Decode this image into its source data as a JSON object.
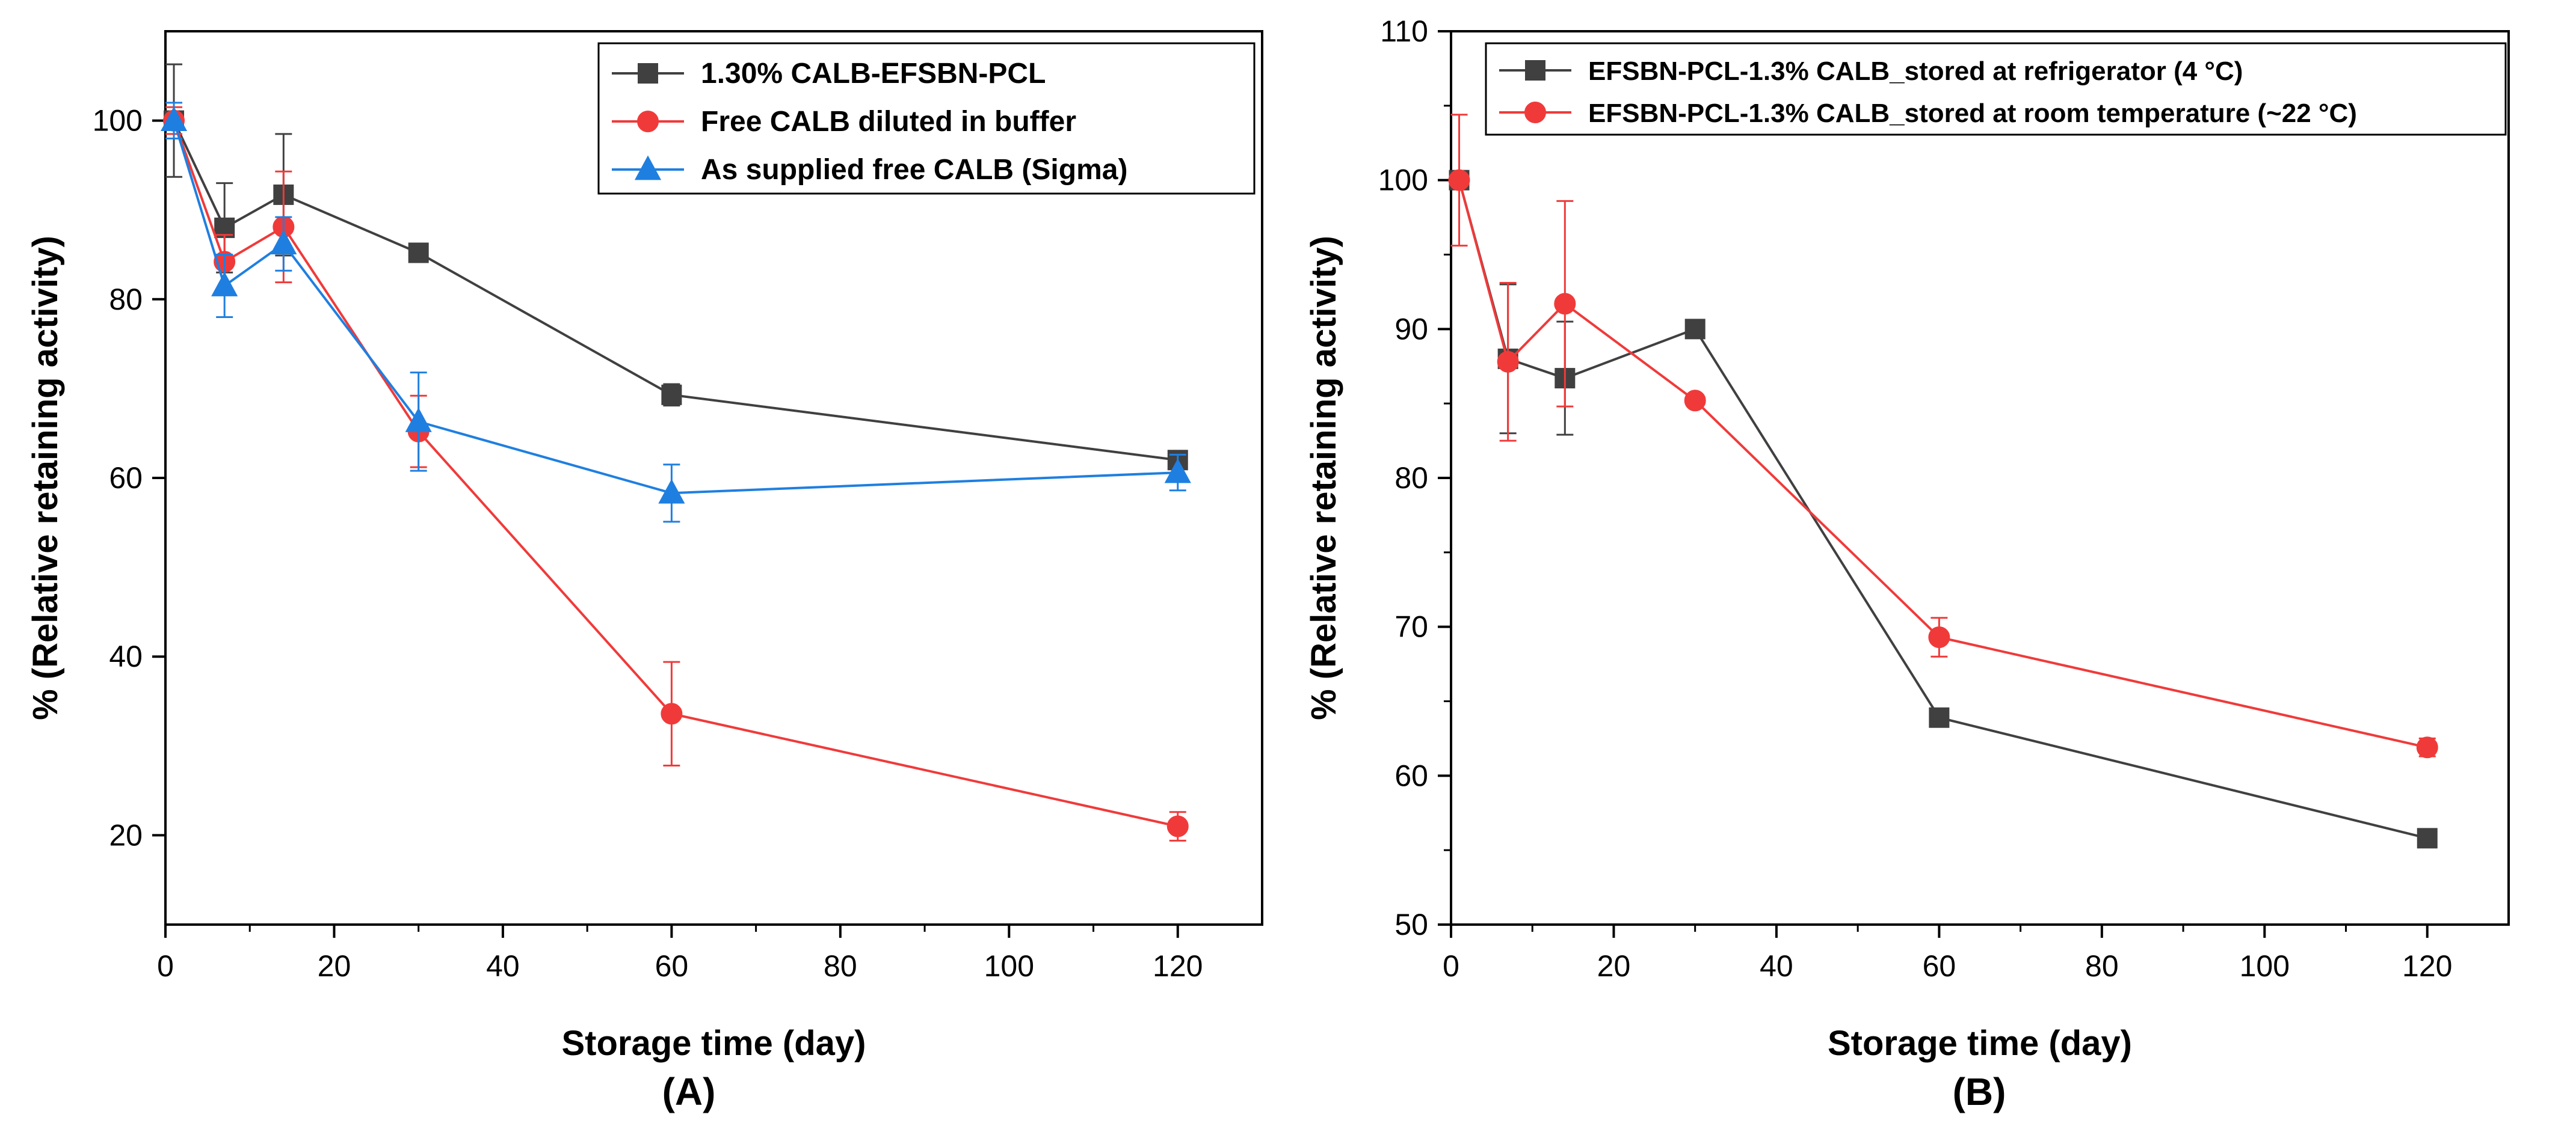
{
  "figure": {
    "panel_labels": [
      "(A)",
      "(B)"
    ]
  },
  "chart_data": [
    {
      "type": "line",
      "panel": "(A)",
      "title": "",
      "xlabel": "Storage time (day)",
      "ylabel": "% (Relative retaining activity)",
      "xlim": [
        0,
        130
      ],
      "ylim": [
        10,
        110
      ],
      "xticks": [
        0,
        20,
        40,
        60,
        80,
        100,
        120
      ],
      "yticks": [
        20,
        40,
        60,
        80,
        100
      ],
      "grid": false,
      "legend_position": "top-right",
      "series": [
        {
          "name": "1.30% CALB-EFSBN-PCL",
          "color": "#404040",
          "marker": "square",
          "x": [
            1,
            7,
            14,
            30,
            60,
            120
          ],
          "y": [
            100,
            88,
            91.7,
            85.2,
            69.3,
            62
          ],
          "err": [
            6.3,
            5,
            6.8,
            0,
            1.2,
            0.6
          ]
        },
        {
          "name": "Free CALB diluted in buffer",
          "color": "#f03a3a",
          "marker": "circle",
          "x": [
            1,
            7,
            14,
            30,
            60,
            120
          ],
          "y": [
            100,
            84.2,
            88.1,
            65.2,
            33.6,
            21
          ],
          "err": [
            1.5,
            3,
            6.2,
            4,
            5.8,
            1.6
          ]
        },
        {
          "name": "As supplied free CALB (Sigma)",
          "color": "#1f7fe0",
          "marker": "triangle",
          "x": [
            1,
            7,
            14,
            30,
            60,
            120
          ],
          "y": [
            100,
            81.5,
            86.2,
            66.3,
            58.3,
            60.6
          ],
          "err": [
            2,
            3.5,
            3,
            5.5,
            3.2,
            2
          ]
        }
      ]
    },
    {
      "type": "line",
      "panel": "(B)",
      "title": "",
      "xlabel": "Storage time (day)",
      "ylabel": "% (Relative retaining activity)",
      "xlim": [
        0,
        130
      ],
      "ylim": [
        50,
        110
      ],
      "xticks": [
        0,
        20,
        40,
        60,
        80,
        100,
        120
      ],
      "yticks": [
        50,
        60,
        70,
        80,
        90,
        100,
        110
      ],
      "grid": false,
      "legend_position": "top-right",
      "series": [
        {
          "name": "EFSBN-PCL-1.3% CALB_stored at refrigerator (4 °C)",
          "color": "#404040",
          "marker": "square",
          "x": [
            1,
            7,
            14,
            30,
            60,
            120
          ],
          "y": [
            100,
            88,
            86.7,
            90,
            63.9,
            55.8
          ],
          "err": [
            0,
            5,
            3.8,
            0,
            0,
            0
          ]
        },
        {
          "name": "EFSBN-PCL-1.3% CALB_stored at room temperature (~22 °C)",
          "color": "#f03a3a",
          "marker": "circle",
          "x": [
            1,
            7,
            14,
            30,
            60,
            120
          ],
          "y": [
            100,
            87.8,
            91.7,
            85.2,
            69.3,
            61.9
          ],
          "err": [
            4.4,
            5.3,
            6.9,
            0,
            1.3,
            0.6
          ]
        }
      ]
    }
  ]
}
